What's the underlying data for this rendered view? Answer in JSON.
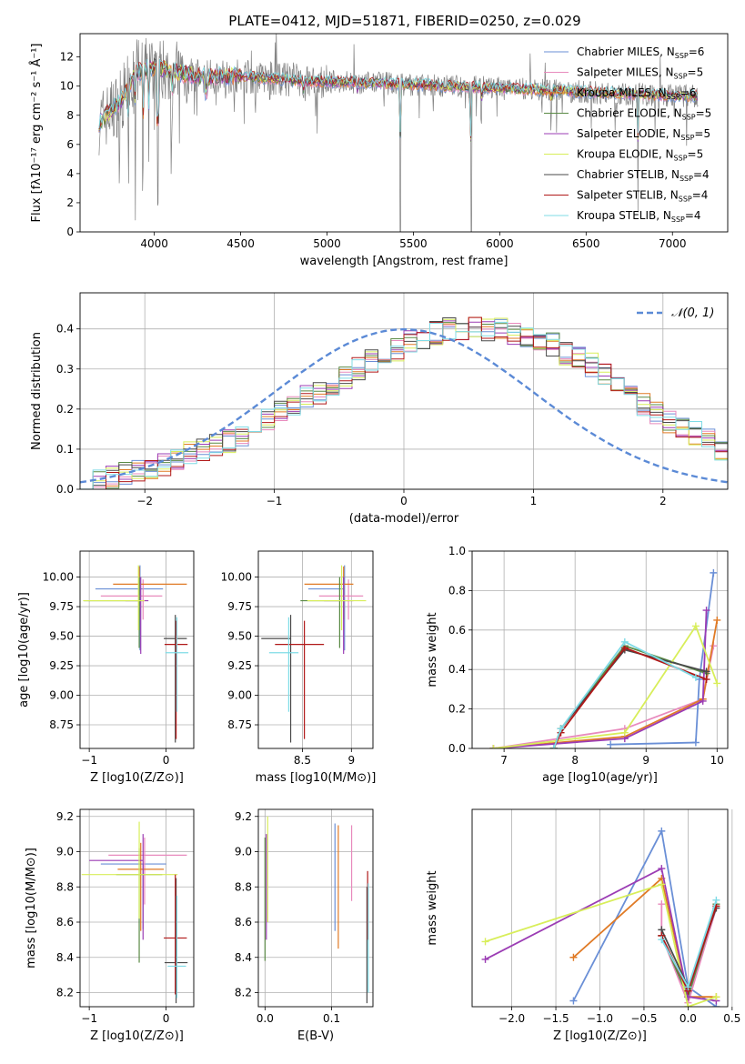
{
  "figure": {
    "title": "PLATE=0412, MJD=51871, FIBERID=0250, z=0.029"
  },
  "colors": {
    "chabrier_miles": "#6a8fd6",
    "salpeter_miles": "#e88abd",
    "kroupa_miles": "#e07a25",
    "chabrier_elodie": "#5a8a45",
    "salpeter_elodie": "#9b3cb4",
    "kroupa_elodie": "#d8ee5a",
    "chabrier_stelib": "#4a4a4a",
    "salpeter_stelib": "#b01818",
    "kroupa_stelib": "#7fdbe6",
    "data": "#808080",
    "normal": "#5b8ad6"
  },
  "chart_data": [
    {
      "id": "spectrum",
      "type": "line",
      "xlabel": "wavelength [Angstrom, rest frame]",
      "ylabel": "Flux [fλ10⁻¹⁷ erg cm⁻² s⁻¹ Å⁻¹]",
      "xlim": [
        3570,
        7320
      ],
      "ylim": [
        0,
        13.6
      ],
      "xticks": [
        4000,
        4500,
        5000,
        5500,
        6000,
        6500,
        7000
      ],
      "yticks": [
        0,
        2,
        4,
        6,
        8,
        10,
        12
      ],
      "legend_position": "top-right",
      "legend": [
        "Chabrier MILES, N_SSP=6",
        "Salpeter MILES, N_SSP=5",
        "Kroupa MILES, N_SSP=6",
        "Chabrier ELODIE, N_SSP=5",
        "Salpeter ELODIE, N_SSP=5",
        "Kroupa ELODIE, N_SSP=5",
        "Chabrier STELIB, N_SSP=4",
        "Salpeter STELIB, N_SSP=4",
        "Kroupa STELIB, N_SSP=4"
      ],
      "model_trend": {
        "x": [
          3680,
          3800,
          3900,
          4000,
          4100,
          4300,
          4500,
          4700,
          4900,
          5100,
          5300,
          5500,
          5700,
          5900,
          6100,
          6300,
          6500,
          6700,
          6900,
          7150
        ],
        "y": [
          7.5,
          8.9,
          11.0,
          11.3,
          11.0,
          10.6,
          10.7,
          10.5,
          10.3,
          10.3,
          10.2,
          10.1,
          10.0,
          9.9,
          9.8,
          9.7,
          9.6,
          9.5,
          9.4,
          9.3
        ]
      },
      "absorption_features": [
        {
          "x": 3850,
          "depth": 5.0
        },
        {
          "x": 3890,
          "depth": 4.5
        },
        {
          "x": 3934,
          "depth": 8.0
        },
        {
          "x": 3968,
          "depth": 7.0
        },
        {
          "x": 4020,
          "depth": 9.8
        },
        {
          "x": 4102,
          "depth": 3.0
        },
        {
          "x": 4300,
          "depth": 2.5
        },
        {
          "x": 4861,
          "depth": 1.5
        },
        {
          "x": 5175,
          "depth": 1.5
        },
        {
          "x": 5425,
          "depth": 9.5
        },
        {
          "x": 5835,
          "depth": 9.8
        },
        {
          "x": 5893,
          "depth": 2.0
        },
        {
          "x": 6300,
          "depth": 1.0
        },
        {
          "x": 6800,
          "depth": 8.5
        }
      ]
    },
    {
      "id": "residuals",
      "type": "histogram",
      "xlabel": "(data-model)/error",
      "ylabel": "Normed distribution",
      "xlim": [
        -2.5,
        2.5
      ],
      "ylim": [
        0,
        0.49
      ],
      "xticks": [
        -2,
        -1,
        0,
        1,
        2
      ],
      "yticks": [
        0.0,
        0.1,
        0.2,
        0.3,
        0.4
      ],
      "grid": true,
      "legend_position": "top-right",
      "normal_label": "N(0,1)",
      "bin_width": 0.1,
      "bin_start": -2.5,
      "base_values": [
        0.03,
        0.02,
        0.03,
        0.04,
        0.05,
        0.05,
        0.06,
        0.07,
        0.09,
        0.1,
        0.11,
        0.12,
        0.13,
        0.15,
        0.17,
        0.19,
        0.21,
        0.23,
        0.24,
        0.25,
        0.28,
        0.3,
        0.32,
        0.34,
        0.35,
        0.37,
        0.38,
        0.39,
        0.4,
        0.4,
        0.41,
        0.4,
        0.4,
        0.39,
        0.38,
        0.37,
        0.36,
        0.34,
        0.33,
        0.31,
        0.29,
        0.26,
        0.23,
        0.21,
        0.19,
        0.17,
        0.15,
        0.14,
        0.12,
        0.1,
        0.08,
        0.09,
        0.07,
        0.07,
        0.06,
        0.05,
        0.05,
        0.04,
        0.04,
        0.03,
        0.03,
        0.03,
        0.02,
        0.02,
        0.02,
        0.02,
        0.02,
        0.02,
        0.02,
        0.02
      ]
    },
    {
      "id": "age_vs_Z",
      "type": "errorbar",
      "xlabel": "Z [log10(Z/Z⊙)]",
      "ylabel": "age  [log10(age/yr)]",
      "xlim": [
        -1.12,
        0.36
      ],
      "ylim": [
        8.55,
        10.22
      ],
      "xticks": [
        -1,
        0
      ],
      "yticks": [
        8.75,
        9.0,
        9.25,
        9.5,
        9.75,
        10.0
      ],
      "points": [
        {
          "model": "chabrier_miles",
          "x": -0.34,
          "y": 9.9,
          "xerr": [
            0.58,
            0.3
          ],
          "yerr": [
            0.52,
            0.2
          ]
        },
        {
          "model": "salpeter_miles",
          "x": -0.3,
          "y": 9.84,
          "xerr": [
            0.55,
            0.25
          ],
          "yerr": [
            0.2,
            0.14
          ]
        },
        {
          "model": "kroupa_miles",
          "x": -0.35,
          "y": 9.94,
          "xerr": [
            0.34,
            0.62
          ],
          "yerr": [
            0.3,
            0.15
          ]
        },
        {
          "model": "chabrier_elodie",
          "x": -0.35,
          "y": 9.8,
          "xerr": [
            0.72,
            0.0
          ],
          "yerr": [
            0.4,
            0.2
          ]
        },
        {
          "model": "salpeter_elodie",
          "x": -0.33,
          "y": 9.8,
          "xerr": [
            0.2,
            0.1
          ],
          "yerr": [
            0.45,
            0.2
          ]
        },
        {
          "model": "kroupa_elodie",
          "x": -0.36,
          "y": 9.8,
          "xerr": [
            0.72,
            0.08
          ],
          "yerr": [
            0.25,
            0.3
          ]
        },
        {
          "model": "chabrier_stelib",
          "x": 0.12,
          "y": 9.48,
          "xerr": [
            0.15,
            0.15
          ],
          "yerr": [
            0.88,
            0.2
          ]
        },
        {
          "model": "salpeter_stelib",
          "x": 0.13,
          "y": 9.43,
          "xerr": [
            0.15,
            0.15
          ],
          "yerr": [
            0.8,
            0.2
          ]
        },
        {
          "model": "kroupa_stelib",
          "x": 0.14,
          "y": 9.36,
          "xerr": [
            0.15,
            0.15
          ],
          "yerr": [
            0.5,
            0.3
          ]
        }
      ]
    },
    {
      "id": "age_vs_mass",
      "type": "errorbar",
      "xlabel": "mass [log10(M/M⊙)]",
      "ylabel": "",
      "xlim": [
        8.05,
        9.22
      ],
      "ylim": [
        8.55,
        10.22
      ],
      "xticks": [
        8.5,
        9.0
      ],
      "yticks": [
        8.75,
        9.0,
        9.25,
        9.5,
        9.75,
        10.0
      ],
      "points": [
        {
          "model": "chabrier_miles",
          "x": 8.93,
          "y": 9.9,
          "xerr": [
            0.37,
            0.0
          ],
          "yerr": [
            0.52,
            0.2
          ]
        },
        {
          "model": "salpeter_miles",
          "x": 8.97,
          "y": 9.84,
          "xerr": [
            0.3,
            0.15
          ],
          "yerr": [
            0.2,
            0.14
          ]
        },
        {
          "model": "kroupa_miles",
          "x": 8.92,
          "y": 9.94,
          "xerr": [
            0.4,
            0.1
          ],
          "yerr": [
            0.3,
            0.15
          ]
        },
        {
          "model": "chabrier_elodie",
          "x": 8.88,
          "y": 9.8,
          "xerr": [
            0.4,
            0.0
          ],
          "yerr": [
            0.4,
            0.2
          ]
        },
        {
          "model": "salpeter_elodie",
          "x": 8.92,
          "y": 9.8,
          "xerr": [
            0.2,
            0.1
          ],
          "yerr": [
            0.45,
            0.2
          ]
        },
        {
          "model": "kroupa_elodie",
          "x": 8.9,
          "y": 9.8,
          "xerr": [
            0.35,
            0.25
          ],
          "yerr": [
            0.25,
            0.3
          ]
        },
        {
          "model": "chabrier_stelib",
          "x": 8.38,
          "y": 9.48,
          "xerr": [
            0.3,
            0.0
          ],
          "yerr": [
            0.88,
            0.2
          ]
        },
        {
          "model": "salpeter_stelib",
          "x": 8.52,
          "y": 9.43,
          "xerr": [
            0.3,
            0.2
          ],
          "yerr": [
            0.8,
            0.2
          ]
        },
        {
          "model": "kroupa_stelib",
          "x": 8.36,
          "y": 9.36,
          "xerr": [
            0.2,
            0.1
          ],
          "yerr": [
            0.5,
            0.3
          ]
        }
      ]
    },
    {
      "id": "weight_vs_age",
      "type": "line",
      "xlabel": "age  [log10(age/yr)]",
      "ylabel": "mass weight",
      "xlim": [
        6.55,
        10.15
      ],
      "ylim": [
        0.0,
        1.0
      ],
      "xticks": [
        7,
        8,
        9,
        10
      ],
      "yticks": [
        0.0,
        0.2,
        0.4,
        0.6,
        0.8,
        1.0
      ],
      "grid": true,
      "series": [
        {
          "model": "chabrier_miles",
          "x": [
            8.5,
            9.7,
            9.75,
            9.95
          ],
          "y": [
            0.02,
            0.03,
            0.35,
            0.89
          ]
        },
        {
          "model": "salpeter_miles",
          "x": [
            6.85,
            8.7,
            9.8,
            9.95
          ],
          "y": [
            0.0,
            0.1,
            0.25,
            0.52
          ]
        },
        {
          "model": "kroupa_miles",
          "x": [
            6.85,
            8.7,
            9.8,
            10.0
          ],
          "y": [
            0.0,
            0.06,
            0.25,
            0.65
          ]
        },
        {
          "model": "chabrier_elodie",
          "x": [
            7.7,
            7.8,
            8.7,
            9.85
          ],
          "y": [
            0.0,
            0.1,
            0.52,
            0.38
          ]
        },
        {
          "model": "salpeter_elodie",
          "x": [
            6.85,
            8.7,
            9.8,
            9.85
          ],
          "y": [
            0.0,
            0.05,
            0.24,
            0.7
          ]
        },
        {
          "model": "kroupa_elodie",
          "x": [
            6.85,
            8.7,
            9.7,
            10.0
          ],
          "y": [
            0.0,
            0.08,
            0.62,
            0.33
          ]
        },
        {
          "model": "chabrier_stelib",
          "x": [
            7.7,
            7.8,
            8.7,
            9.85
          ],
          "y": [
            0.0,
            0.1,
            0.5,
            0.39
          ]
        },
        {
          "model": "salpeter_stelib",
          "x": [
            7.7,
            7.8,
            8.7,
            9.85
          ],
          "y": [
            0.0,
            0.08,
            0.51,
            0.35
          ]
        },
        {
          "model": "kroupa_stelib",
          "x": [
            7.7,
            7.8,
            8.7,
            9.7
          ],
          "y": [
            0.0,
            0.1,
            0.54,
            0.36
          ]
        }
      ]
    },
    {
      "id": "mass_vs_Z",
      "type": "errorbar",
      "xlabel": "Z [log10(Z/Z⊙)]",
      "ylabel": "mass [log10(M/M⊙)]",
      "xlim": [
        -1.12,
        0.36
      ],
      "ylim": [
        8.12,
        9.24
      ],
      "xticks": [
        -1,
        0
      ],
      "yticks": [
        8.2,
        8.4,
        8.6,
        8.8,
        9.0,
        9.2
      ],
      "points": [
        {
          "model": "chabrier_miles",
          "x": -0.3,
          "y": 8.93,
          "xerr": [
            0.55,
            0.3
          ],
          "yerr": [
            0.37,
            0.0
          ]
        },
        {
          "model": "salpeter_miles",
          "x": -0.28,
          "y": 8.98,
          "xerr": [
            0.47,
            0.55
          ],
          "yerr": [
            0.28,
            0.1
          ]
        },
        {
          "model": "kroupa_miles",
          "x": -0.33,
          "y": 8.9,
          "xerr": [
            0.3,
            0.3
          ],
          "yerr": [
            0.35,
            0.15
          ]
        },
        {
          "model": "chabrier_elodie",
          "x": -0.35,
          "y": 8.87,
          "xerr": [
            0.3,
            0.3
          ],
          "yerr": [
            0.5,
            0.15
          ]
        },
        {
          "model": "salpeter_elodie",
          "x": -0.3,
          "y": 8.95,
          "xerr": [
            0.7,
            0.0
          ],
          "yerr": [
            0.45,
            0.15
          ]
        },
        {
          "model": "kroupa_elodie",
          "x": -0.35,
          "y": 8.87,
          "xerr": [
            0.75,
            0.5
          ],
          "yerr": [
            0.25,
            0.3
          ]
        },
        {
          "model": "chabrier_stelib",
          "x": 0.13,
          "y": 8.37,
          "xerr": [
            0.15,
            0.15
          ],
          "yerr": [
            0.23,
            0.48
          ]
        },
        {
          "model": "salpeter_stelib",
          "x": 0.12,
          "y": 8.51,
          "xerr": [
            0.15,
            0.15
          ],
          "yerr": [
            0.32,
            0.36
          ]
        },
        {
          "model": "kroupa_stelib",
          "x": 0.14,
          "y": 8.35,
          "xerr": [
            0.12,
            0.12
          ],
          "yerr": [
            0.18,
            0.4
          ]
        }
      ]
    },
    {
      "id": "mass_vs_ebv",
      "type": "errorbar",
      "xlabel": "E(B-V)",
      "ylabel": "",
      "xlim": [
        -0.01,
        0.162
      ],
      "ylim": [
        8.12,
        9.24
      ],
      "xticks": [
        0.0,
        0.1
      ],
      "yticks": [
        8.2,
        8.4,
        8.6,
        8.8,
        9.0,
        9.2
      ],
      "points": [
        {
          "model": "chabrier_miles",
          "x": 0.105,
          "y": 8.93,
          "xerr": [
            0,
            0
          ],
          "yerr": [
            0.38,
            0.23
          ]
        },
        {
          "model": "salpeter_miles",
          "x": 0.13,
          "y": 8.95,
          "xerr": [
            0,
            0
          ],
          "yerr": [
            0.23,
            0.2
          ]
        },
        {
          "model": "kroupa_miles",
          "x": 0.11,
          "y": 8.8,
          "xerr": [
            0,
            0
          ],
          "yerr": [
            0.35,
            0.35
          ]
        },
        {
          "model": "chabrier_elodie",
          "x": 0.0,
          "y": 8.78,
          "xerr": [
            0,
            0
          ],
          "yerr": [
            0.4,
            0.3
          ]
        },
        {
          "model": "salpeter_elodie",
          "x": 0.002,
          "y": 8.8,
          "xerr": [
            0,
            0
          ],
          "yerr": [
            0.3,
            0.3
          ]
        },
        {
          "model": "kroupa_elodie",
          "x": 0.004,
          "y": 8.9,
          "xerr": [
            0,
            0
          ],
          "yerr": [
            0.3,
            0.3
          ]
        },
        {
          "model": "chabrier_stelib",
          "x": 0.153,
          "y": 8.5,
          "xerr": [
            0,
            0
          ],
          "yerr": [
            0.36,
            0.3
          ]
        },
        {
          "model": "salpeter_stelib",
          "x": 0.154,
          "y": 8.8,
          "xerr": [
            0,
            0
          ],
          "yerr": [
            0.3,
            0.09
          ]
        },
        {
          "model": "kroupa_stelib",
          "x": 0.155,
          "y": 8.5,
          "xerr": [
            0,
            0
          ],
          "yerr": [
            0.3,
            0.32
          ]
        }
      ]
    },
    {
      "id": "weight_vs_Z",
      "type": "line",
      "xlabel": "Z [log10(Z/Z⊙)]",
      "ylabel": "mass weight",
      "xlim": [
        -2.45,
        0.45
      ],
      "ylim": [
        0.0,
        1.0
      ],
      "xticks": [
        -2.0,
        -1.5,
        -1.0,
        -0.5,
        0.0,
        0.5
      ],
      "grid": true,
      "series": [
        {
          "model": "chabrier_miles",
          "x": [
            -1.3,
            -0.3,
            0.0,
            0.32
          ],
          "y": [
            0.03,
            0.89,
            0.1,
            0.0
          ]
        },
        {
          "model": "salpeter_miles",
          "x": [
            -0.3,
            -0.3,
            0.0,
            0.32
          ],
          "y": [
            0.52,
            0.36,
            0.02,
            0.5
          ]
        },
        {
          "model": "kroupa_miles",
          "x": [
            -1.3,
            -0.3,
            0.0,
            0.32
          ],
          "y": [
            0.25,
            0.65,
            0.05,
            0.05
          ]
        },
        {
          "model": "chabrier_elodie",
          "x": [
            -0.3,
            0.0,
            0.32
          ],
          "y": [
            0.36,
            0.05,
            0.52
          ]
        },
        {
          "model": "salpeter_elodie",
          "x": [
            -2.3,
            -0.3,
            0.0,
            0.32
          ],
          "y": [
            0.24,
            0.7,
            0.05,
            0.03
          ]
        },
        {
          "model": "kroupa_elodie",
          "x": [
            -2.3,
            -0.3,
            0.0,
            0.32
          ],
          "y": [
            0.33,
            0.62,
            0.0,
            0.05
          ]
        },
        {
          "model": "chabrier_stelib",
          "x": [
            -0.3,
            0.0,
            0.32
          ],
          "y": [
            0.39,
            0.1,
            0.5
          ]
        },
        {
          "model": "salpeter_stelib",
          "x": [
            -0.3,
            0.0,
            0.32
          ],
          "y": [
            0.36,
            0.08,
            0.51
          ]
        },
        {
          "model": "kroupa_stelib",
          "x": [
            -0.3,
            0.0,
            0.32
          ],
          "y": [
            0.34,
            0.1,
            0.54
          ]
        }
      ]
    }
  ]
}
